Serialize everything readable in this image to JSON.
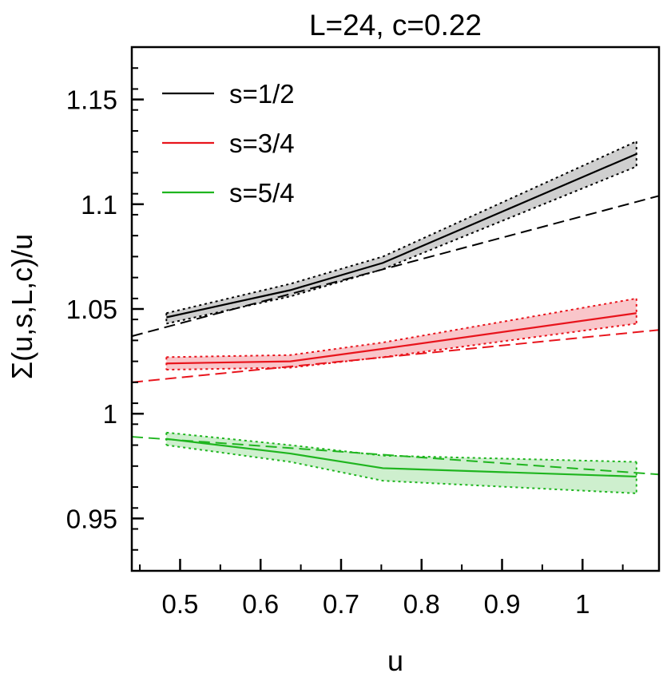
{
  "chart_data": {
    "type": "line",
    "title": "L=24, c=0.22",
    "xlabel": "u",
    "ylabel": "Σ(u,s,L,c)/u",
    "xlim": [
      0.44,
      1.095
    ],
    "ylim": [
      0.925,
      1.175
    ],
    "xticks": [
      0.5,
      0.6,
      0.7,
      0.8,
      0.9,
      1.0
    ],
    "xtick_labels": [
      "0.5",
      "0.6",
      "0.7",
      "0.8",
      "0.9",
      "1"
    ],
    "yticks": [
      0.95,
      1.0,
      1.05,
      1.1,
      1.15
    ],
    "ytick_labels": [
      "0.95",
      "1",
      "1.05",
      "1.1",
      "1.15"
    ],
    "grid": false,
    "legend_position": "top-left",
    "series": [
      {
        "name": "s=1/2",
        "color": "#000000",
        "band_color": "#bfbfbf",
        "x": [
          0.483,
          0.637,
          0.752,
          1.067
        ],
        "y": [
          1.046,
          1.059,
          1.072,
          1.124
        ],
        "y_upper": [
          1.048,
          1.062,
          1.075,
          1.13
        ],
        "y_lower": [
          1.043,
          1.056,
          1.069,
          1.118
        ],
        "fit_line": {
          "x": [
            0.44,
            1.095
          ],
          "y": [
            1.037,
            1.104
          ]
        }
      },
      {
        "name": "s=3/4",
        "color": "#e8141c",
        "band_color": "#f7b3b8",
        "x": [
          0.483,
          0.637,
          0.752,
          1.067
        ],
        "y": [
          1.024,
          1.025,
          1.031,
          1.048
        ],
        "y_upper": [
          1.027,
          1.028,
          1.034,
          1.055
        ],
        "y_lower": [
          1.021,
          1.022,
          1.027,
          1.043
        ],
        "fit_line": {
          "x": [
            0.44,
            1.095
          ],
          "y": [
            1.015,
            1.04
          ]
        }
      },
      {
        "name": "s=5/4",
        "color": "#1fb51f",
        "band_color": "#bde9bd",
        "x": [
          0.483,
          0.637,
          0.752,
          1.067
        ],
        "y": [
          0.988,
          0.981,
          0.974,
          0.97
        ],
        "y_upper": [
          0.991,
          0.985,
          0.98,
          0.977
        ],
        "y_lower": [
          0.985,
          0.977,
          0.968,
          0.962
        ],
        "fit_line": {
          "x": [
            0.44,
            1.095
          ],
          "y": [
            0.989,
            0.971
          ]
        }
      }
    ]
  }
}
